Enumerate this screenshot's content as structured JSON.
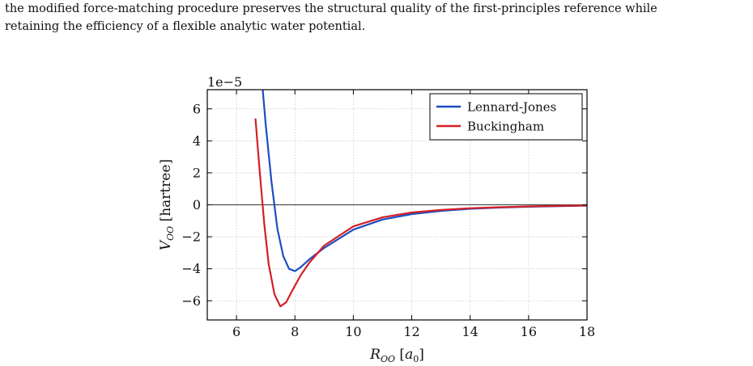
{
  "paragraph": {
    "line1": "the modified force-matching procedure preserves the structural quality of the first-principles reference while",
    "line2": "retaining the efficiency of a flexible analytic water potential."
  },
  "chart_data": {
    "type": "line",
    "title": "",
    "xlabel": "R_OO [a_0]",
    "ylabel": "V_OO [hartree]",
    "y_offset_label": "1e−5",
    "xlim": [
      5.0,
      18.0
    ],
    "ylim": [
      -7.2,
      7.2
    ],
    "xticks": [
      6,
      8,
      10,
      12,
      14,
      16,
      18
    ],
    "xtick_labels": [
      "6",
      "8",
      "10",
      "12",
      "14",
      "16",
      "18"
    ],
    "yticks": [
      6,
      4,
      2,
      0,
      -2,
      -4,
      -6
    ],
    "ytick_labels": [
      "6",
      "4",
      "2",
      "0",
      "−2",
      "−4",
      "−6"
    ],
    "grid": true,
    "legend_position": "top-right",
    "zero_line": true,
    "series": [
      {
        "name": "Lennard-Jones",
        "color": "#1a4ec0",
        "x": [
          6.9,
          7.0,
          7.2,
          7.4,
          7.6,
          7.8,
          8.0,
          8.2,
          8.5,
          9.0,
          10.0,
          11.0,
          12.0,
          13.0,
          14.0,
          15.0,
          16.0,
          17.0,
          18.0
        ],
        "y": [
          7.2,
          5.0,
          1.4,
          -1.5,
          -3.2,
          -4.0,
          -4.15,
          -3.9,
          -3.4,
          -2.7,
          -1.55,
          -0.92,
          -0.58,
          -0.38,
          -0.25,
          -0.17,
          -0.12,
          -0.08,
          -0.05
        ]
      },
      {
        "name": "Buckingham",
        "color": "#d42027",
        "x": [
          6.65,
          6.8,
          6.95,
          7.1,
          7.3,
          7.5,
          7.7,
          7.9,
          8.2,
          8.5,
          9.0,
          10.0,
          11.0,
          12.0,
          13.0,
          14.0,
          15.0,
          16.0,
          17.0,
          18.0
        ],
        "y": [
          5.4,
          2.0,
          -1.2,
          -3.7,
          -5.6,
          -6.35,
          -6.1,
          -5.4,
          -4.4,
          -3.6,
          -2.55,
          -1.35,
          -0.78,
          -0.48,
          -0.32,
          -0.21,
          -0.15,
          -0.1,
          -0.07,
          -0.04
        ]
      }
    ]
  }
}
